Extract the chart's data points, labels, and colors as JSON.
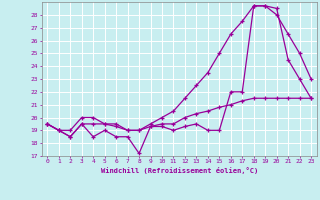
{
  "xlabel": "Windchill (Refroidissement éolien,°C)",
  "xlim": [
    -0.5,
    23.5
  ],
  "ylim": [
    17,
    29
  ],
  "yticks": [
    17,
    18,
    19,
    20,
    21,
    22,
    23,
    24,
    25,
    26,
    27,
    28
  ],
  "xticks": [
    0,
    1,
    2,
    3,
    4,
    5,
    6,
    7,
    8,
    9,
    10,
    11,
    12,
    13,
    14,
    15,
    16,
    17,
    18,
    19,
    20,
    21,
    22,
    23
  ],
  "background_color": "#c8eef0",
  "grid_color": "#ffffff",
  "line_color": "#990099",
  "series": [
    {
      "x": [
        0,
        1,
        2,
        3,
        4,
        5,
        6,
        7,
        8,
        9,
        10,
        11,
        12,
        13,
        14,
        15,
        16,
        17,
        18,
        19,
        20,
        21,
        22,
        23
      ],
      "y": [
        19.5,
        19.0,
        18.5,
        19.5,
        18.5,
        19.0,
        18.5,
        18.5,
        17.2,
        19.3,
        19.3,
        19.0,
        19.3,
        19.5,
        19.0,
        19.0,
        22.0,
        22.0,
        28.7,
        28.7,
        28.5,
        24.5,
        23.0,
        21.5
      ]
    },
    {
      "x": [
        0,
        1,
        2,
        3,
        4,
        5,
        6,
        7,
        8,
        9,
        10,
        11,
        12,
        13,
        14,
        15,
        16,
        17,
        18,
        19,
        20,
        21,
        22,
        23
      ],
      "y": [
        19.5,
        19.0,
        18.5,
        19.5,
        19.5,
        19.5,
        19.3,
        19.0,
        19.0,
        19.5,
        20.0,
        20.5,
        21.5,
        22.5,
        23.5,
        25.0,
        26.5,
        27.5,
        28.7,
        28.7,
        28.0,
        26.5,
        25.0,
        23.0
      ]
    },
    {
      "x": [
        0,
        1,
        2,
        3,
        4,
        5,
        6,
        7,
        8,
        9,
        10,
        11,
        12,
        13,
        14,
        15,
        16,
        17,
        18,
        19,
        20,
        21,
        22,
        23
      ],
      "y": [
        19.5,
        19.0,
        19.0,
        20.0,
        20.0,
        19.5,
        19.5,
        19.0,
        19.0,
        19.3,
        19.5,
        19.5,
        20.0,
        20.3,
        20.5,
        20.8,
        21.0,
        21.3,
        21.5,
        21.5,
        21.5,
        21.5,
        21.5,
        21.5
      ]
    }
  ]
}
